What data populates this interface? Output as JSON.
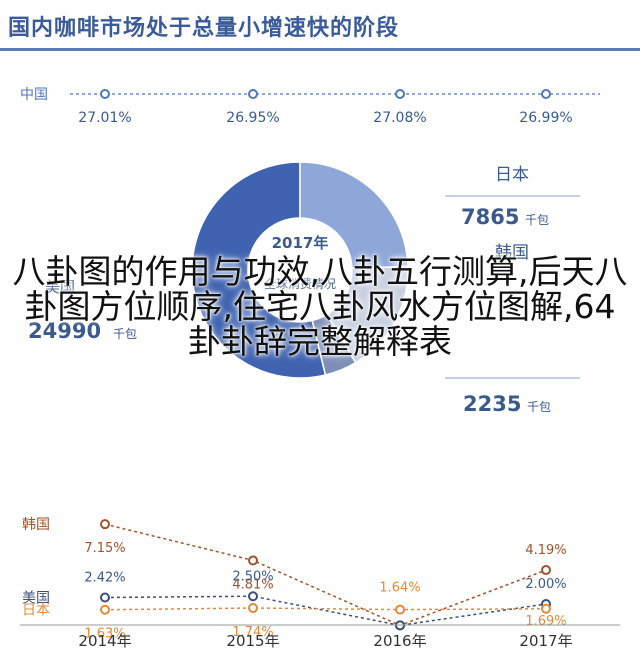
{
  "title": "国内咖啡市场处于总量小增速快的阶段",
  "overlay_text": "八卦图的作用与功效,八卦五行测算,后天八卦图方位顺序,住宅八卦风水方位图解,64卦卦辞完整解释表",
  "colors": {
    "title": "#3a5a9a",
    "china": "#4f78b8",
    "korea": "#a0522d",
    "usa": "#3b4f7a",
    "japan": "#e08a3a",
    "donut_usa": "#3f63b0",
    "donut_china": "#8ea7d8",
    "donut_japan": "#c7cfe0",
    "donut_korea": "#7d8fb8",
    "label_blue": "#3b5a8c",
    "axis": "#999999"
  },
  "chart_data": [
    {
      "type": "line",
      "series": [
        {
          "name": "中国",
          "x": [
            "2014年",
            "2015年",
            "2016年",
            "2017年"
          ],
          "values": [
            27.01,
            26.95,
            27.08,
            26.99
          ],
          "labels": [
            "27.01%",
            "26.95%",
            "27.08%",
            "26.99%"
          ]
        }
      ]
    },
    {
      "type": "pie",
      "center_label": "2017年",
      "center_sublabel": "全球消费情况",
      "slices": [
        {
          "name": "美国",
          "value": 24990,
          "value_text": "24990",
          "unit": "千包"
        },
        {
          "name": "中国",
          "value": 11370,
          "value_text": "",
          "unit": ""
        },
        {
          "name": "日本",
          "value": 7865,
          "value_text": "7865",
          "unit": "千包"
        },
        {
          "name": "韩国",
          "value": 2235,
          "value_text": "2235",
          "unit": "千包"
        }
      ]
    },
    {
      "type": "line",
      "categories": [
        "2014年",
        "2015年",
        "2016年",
        "2017年"
      ],
      "series": [
        {
          "name": "韩国",
          "values": [
            7.15,
            4.81,
            0.62,
            4.19
          ],
          "labels": [
            "7.15%",
            "4.81%",
            "",
            "4.19%"
          ]
        },
        {
          "name": "美国",
          "values": [
            2.42,
            2.5,
            0.62,
            2.0
          ],
          "labels": [
            "2.42%",
            "2.50%",
            "",
            "2.00%"
          ]
        },
        {
          "name": "日本",
          "values": [
            1.63,
            1.74,
            1.64,
            1.69
          ],
          "labels": [
            "1.63%",
            "1.74%",
            "1.64%",
            "1.69%"
          ]
        }
      ]
    }
  ]
}
